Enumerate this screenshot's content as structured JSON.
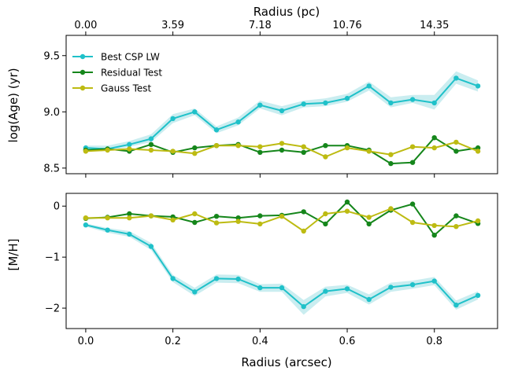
{
  "chart_data": {
    "type": "line",
    "colors": {
      "best": "#1fc1c9",
      "residual": "#15861b",
      "gauss": "#bdbb12",
      "band": "#9edfe3"
    },
    "x": [
      0.0,
      0.05,
      0.1,
      0.15,
      0.2,
      0.25,
      0.3,
      0.35,
      0.4,
      0.45,
      0.5,
      0.55,
      0.6,
      0.65,
      0.7,
      0.75,
      0.8,
      0.85,
      0.9
    ],
    "xlabel": "Radius (arcsec)",
    "xlim": [
      -0.045,
      0.945
    ],
    "xticks": [
      "0.0",
      "0.2",
      "0.4",
      "0.6",
      "0.8"
    ],
    "xtick_values": [
      0.0,
      0.2,
      0.4,
      0.6,
      0.8
    ],
    "top_axis": {
      "label": "Radius (pc)",
      "ticks": [
        "0.00",
        "3.59",
        "7.18",
        "10.76",
        "14.35"
      ],
      "tick_positions_arcsec": [
        0.0,
        0.2,
        0.4,
        0.6,
        0.8
      ]
    },
    "legend": {
      "placement": "top-left",
      "entries": [
        "Best CSP LW",
        "Residual Test",
        "Gauss Test"
      ]
    },
    "panels": [
      {
        "ylabel": "log(Age) (yr)",
        "ylim": [
          8.45,
          9.68
        ],
        "yticks": [
          "8.5",
          "9.0",
          "9.5"
        ],
        "ytick_values": [
          8.5,
          9.0,
          9.5
        ],
        "series": [
          {
            "name": "Best CSP LW",
            "values": [
              8.68,
              8.67,
              8.71,
              8.76,
              8.94,
              9.0,
              8.84,
              8.91,
              9.06,
              9.01,
              9.07,
              9.08,
              9.12,
              9.23,
              9.08,
              9.11,
              9.08,
              9.3,
              9.23
            ],
            "band_low": [
              8.66,
              8.65,
              8.69,
              8.73,
              8.9,
              8.97,
              8.81,
              8.88,
              9.03,
              8.97,
              9.04,
              9.05,
              9.09,
              9.19,
              9.04,
              9.08,
              9.02,
              9.25,
              9.18
            ],
            "band_high": [
              8.7,
              8.7,
              8.74,
              8.8,
              8.98,
              9.03,
              8.87,
              8.95,
              9.1,
              9.05,
              9.1,
              9.12,
              9.16,
              9.27,
              9.13,
              9.15,
              9.15,
              9.36,
              9.28
            ]
          },
          {
            "name": "Residual Test",
            "values": [
              8.66,
              8.67,
              8.65,
              8.71,
              8.64,
              8.68,
              8.7,
              8.71,
              8.64,
              8.66,
              8.64,
              8.7,
              8.7,
              8.66,
              8.54,
              8.55,
              8.77,
              8.65,
              8.68
            ]
          },
          {
            "name": "Gauss Test",
            "values": [
              8.65,
              8.66,
              8.67,
              8.66,
              8.65,
              8.63,
              8.7,
              8.7,
              8.69,
              8.72,
              8.69,
              8.6,
              8.68,
              8.65,
              8.62,
              8.69,
              8.68,
              8.73,
              8.65
            ]
          }
        ]
      },
      {
        "ylabel": "[M/H]",
        "ylim": [
          -2.4,
          0.25
        ],
        "yticks": [
          "−2",
          "−1",
          "0"
        ],
        "ytick_values": [
          -2,
          -1,
          0
        ],
        "series": [
          {
            "name": "Best CSP LW",
            "values": [
              -0.37,
              -0.47,
              -0.55,
              -0.79,
              -1.42,
              -1.68,
              -1.42,
              -1.43,
              -1.6,
              -1.6,
              -1.97,
              -1.67,
              -1.62,
              -1.83,
              -1.59,
              -1.54,
              -1.47,
              -1.94,
              -1.75
            ],
            "band_low": [
              -0.4,
              -0.52,
              -0.6,
              -0.86,
              -1.49,
              -1.76,
              -1.5,
              -1.51,
              -1.68,
              -1.68,
              -2.13,
              -1.77,
              -1.7,
              -1.93,
              -1.68,
              -1.62,
              -1.55,
              -2.03,
              -1.83
            ],
            "band_high": [
              -0.34,
              -0.43,
              -0.49,
              -0.72,
              -1.35,
              -1.6,
              -1.34,
              -1.35,
              -1.53,
              -1.52,
              -1.84,
              -1.58,
              -1.54,
              -1.73,
              -1.5,
              -1.46,
              -1.39,
              -1.85,
              -1.67
            ]
          },
          {
            "name": "Residual Test",
            "values": [
              -0.24,
              -0.22,
              -0.15,
              -0.19,
              -0.21,
              -0.32,
              -0.2,
              -0.23,
              -0.19,
              -0.18,
              -0.11,
              -0.35,
              0.08,
              -0.35,
              -0.08,
              0.04,
              -0.57,
              -0.19,
              -0.34
            ]
          },
          {
            "name": "Gauss Test",
            "values": [
              -0.23,
              -0.23,
              -0.23,
              -0.19,
              -0.27,
              -0.15,
              -0.33,
              -0.3,
              -0.35,
              -0.2,
              -0.49,
              -0.15,
              -0.1,
              -0.22,
              -0.05,
              -0.32,
              -0.38,
              -0.4,
              -0.29
            ]
          }
        ]
      }
    ]
  }
}
